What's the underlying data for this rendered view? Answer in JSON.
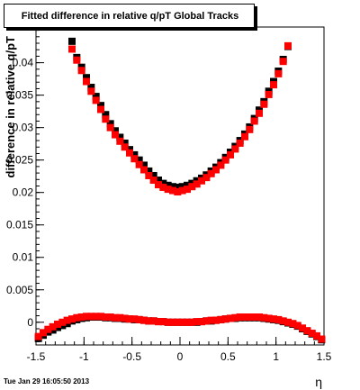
{
  "chart_data": {
    "type": "scatter",
    "title": "Fitted difference in relative q/pT  Global Tracks",
    "xlabel": "η",
    "ylabel": "difference in relative q/pT",
    "xlim": [
      -1.5,
      1.5
    ],
    "ylim": [
      -0.0035,
      0.0455
    ],
    "x_ticks": [
      -1.5,
      -1,
      -0.5,
      0,
      0.5,
      1,
      1.5
    ],
    "x_tick_labels": [
      "-1.5",
      "-1",
      "-0.5",
      "0",
      "0.5",
      "1",
      "1.5"
    ],
    "y_ticks": [
      0,
      0.005,
      0.01,
      0.015,
      0.02,
      0.025,
      0.03,
      0.035,
      0.04
    ],
    "y_tick_labels": [
      "0",
      "0.005",
      "0.01",
      "0.015",
      "0.02",
      "0.025",
      "0.03",
      "0.035",
      "0.04"
    ],
    "grid": false,
    "legend": "none",
    "series": [
      {
        "color": "#000000",
        "x": [
          -1.125,
          -1.075,
          -1.025,
          -0.975,
          -0.925,
          -0.875,
          -0.825,
          -0.775,
          -0.725,
          -0.675,
          -0.625,
          -0.575,
          -0.525,
          -0.475,
          -0.425,
          -0.375,
          -0.325,
          -0.275,
          -0.225,
          -0.175,
          -0.125,
          -0.075,
          -0.025,
          0.025,
          0.075,
          0.125,
          0.175,
          0.225,
          0.275,
          0.325,
          0.375,
          0.425,
          0.475,
          0.525,
          0.575,
          0.625,
          0.675,
          0.725,
          0.775,
          0.825,
          0.875,
          0.925,
          0.975,
          1.025,
          1.075,
          1.125
        ],
        "y": [
          0.0433,
          0.0408,
          0.0393,
          0.0377,
          0.0362,
          0.0348,
          0.0334,
          0.032,
          0.0306,
          0.0295,
          0.0285,
          0.0276,
          0.0266,
          0.0258,
          0.025,
          0.0242,
          0.0233,
          0.0226,
          0.0219,
          0.0214,
          0.0211,
          0.0209,
          0.0208,
          0.0209,
          0.0211,
          0.0214,
          0.0218,
          0.0222,
          0.0227,
          0.0233,
          0.0239,
          0.0246,
          0.0254,
          0.0262,
          0.0271,
          0.028,
          0.029,
          0.0301,
          0.0314,
          0.0327,
          0.034,
          0.0356,
          0.0371,
          0.0387,
          0.0405,
          0.0425
        ]
      },
      {
        "color": "#ff0000",
        "x": [
          -1.125,
          -1.075,
          -1.025,
          -0.975,
          -0.925,
          -0.875,
          -0.825,
          -0.775,
          -0.725,
          -0.675,
          -0.625,
          -0.575,
          -0.525,
          -0.475,
          -0.425,
          -0.375,
          -0.325,
          -0.275,
          -0.225,
          -0.175,
          -0.125,
          -0.075,
          -0.025,
          0.025,
          0.075,
          0.125,
          0.175,
          0.225,
          0.275,
          0.325,
          0.375,
          0.425,
          0.475,
          0.525,
          0.575,
          0.625,
          0.675,
          0.725,
          0.775,
          0.825,
          0.875,
          0.925,
          0.975,
          1.025,
          1.075,
          1.125
        ],
        "y": [
          0.0421,
          0.0404,
          0.0388,
          0.0371,
          0.0356,
          0.0342,
          0.0328,
          0.0313,
          0.03,
          0.0289,
          0.0279,
          0.027,
          0.0261,
          0.0252,
          0.0243,
          0.0235,
          0.0226,
          0.0219,
          0.0212,
          0.0208,
          0.0205,
          0.0203,
          0.0201,
          0.0203,
          0.0205,
          0.0209,
          0.0213,
          0.0218,
          0.0223,
          0.0229,
          0.0235,
          0.0242,
          0.025,
          0.0258,
          0.0267,
          0.0276,
          0.0286,
          0.0297,
          0.031,
          0.0322,
          0.0336,
          0.0351,
          0.0366,
          0.0383,
          0.0402,
          0.0426
        ]
      },
      {
        "color": "#000000",
        "x": [
          -1.475,
          -1.425,
          -1.375,
          -1.325,
          -1.275,
          -1.225,
          -1.175,
          -1.125,
          -1.075,
          -1.025,
          -0.975,
          -0.925,
          -0.875,
          -0.825,
          -0.775,
          -0.725,
          -0.675,
          -0.625,
          -0.575,
          -0.525,
          -0.475,
          -0.425,
          -0.375,
          -0.325,
          -0.275,
          -0.225,
          -0.175,
          -0.125,
          -0.075,
          -0.025,
          0.025,
          0.075,
          0.125,
          0.175,
          0.225,
          0.275,
          0.325,
          0.375,
          0.425,
          0.475,
          0.525,
          0.575,
          0.625,
          0.675,
          0.725,
          0.775,
          0.825,
          0.875,
          0.925,
          0.975,
          1.025,
          1.075,
          1.125,
          1.175,
          1.225,
          1.275,
          1.325,
          1.375,
          1.425,
          1.475
        ],
        "y": [
          -0.0025,
          -0.002,
          -0.0015,
          -0.0012,
          -0.0008,
          -0.0005,
          -0.0002,
          0.0002,
          0.0004,
          0.0006,
          0.0007,
          0.0008,
          0.0008,
          0.0008,
          0.0007,
          0.0007,
          0.0006,
          0.0006,
          0.0005,
          0.0005,
          0.0004,
          0.0004,
          0.0003,
          0.0002,
          0.0002,
          0.0001,
          0.0001,
          0.0,
          0.0,
          0.0,
          0.0,
          0.0,
          0.0,
          0.0,
          0.0001,
          0.0002,
          0.0002,
          0.0003,
          0.0004,
          0.0005,
          0.0006,
          0.0006,
          0.0007,
          0.0007,
          0.0007,
          0.0007,
          0.0007,
          0.0006,
          0.0005,
          0.0004,
          0.0003,
          0.0001,
          -0.0001,
          -0.0003,
          -0.0006,
          -0.001,
          -0.0014,
          -0.0018,
          -0.0022,
          -0.0027
        ]
      },
      {
        "color": "#ff0000",
        "x": [
          -1.475,
          -1.425,
          -1.375,
          -1.325,
          -1.275,
          -1.225,
          -1.175,
          -1.125,
          -1.075,
          -1.025,
          -0.975,
          -0.925,
          -0.875,
          -0.825,
          -0.775,
          -0.725,
          -0.675,
          -0.625,
          -0.575,
          -0.525,
          -0.475,
          -0.425,
          -0.375,
          -0.325,
          -0.275,
          -0.225,
          -0.175,
          -0.125,
          -0.075,
          -0.025,
          0.025,
          0.075,
          0.125,
          0.175,
          0.225,
          0.275,
          0.325,
          0.375,
          0.425,
          0.475,
          0.525,
          0.575,
          0.625,
          0.675,
          0.725,
          0.775,
          0.825,
          0.875,
          0.925,
          0.975,
          1.025,
          1.075,
          1.125,
          1.175,
          1.225,
          1.275,
          1.325,
          1.375,
          1.425,
          1.475
        ],
        "y": [
          -0.0022,
          -0.0016,
          -0.0011,
          -0.0007,
          -0.0003,
          0.0,
          0.0003,
          0.0005,
          0.0007,
          0.0008,
          0.0009,
          0.0009,
          0.0009,
          0.0009,
          0.0008,
          0.0008,
          0.0007,
          0.0007,
          0.0006,
          0.0005,
          0.0005,
          0.0004,
          0.0003,
          0.0002,
          0.0002,
          0.0001,
          0.0001,
          0.0,
          0.0,
          0.0,
          0.0,
          0.0,
          0.0,
          0.0001,
          0.0001,
          0.0002,
          0.0003,
          0.0003,
          0.0004,
          0.0005,
          0.0006,
          0.0007,
          0.0008,
          0.0008,
          0.0008,
          0.0008,
          0.0008,
          0.0007,
          0.0006,
          0.0005,
          0.0004,
          0.0002,
          0.0,
          -0.0002,
          -0.0005,
          -0.0009,
          -0.0013,
          -0.0017,
          -0.0021,
          -0.0026
        ]
      }
    ]
  },
  "datestamp": "Tue Jan 29 16:05:50 2013"
}
